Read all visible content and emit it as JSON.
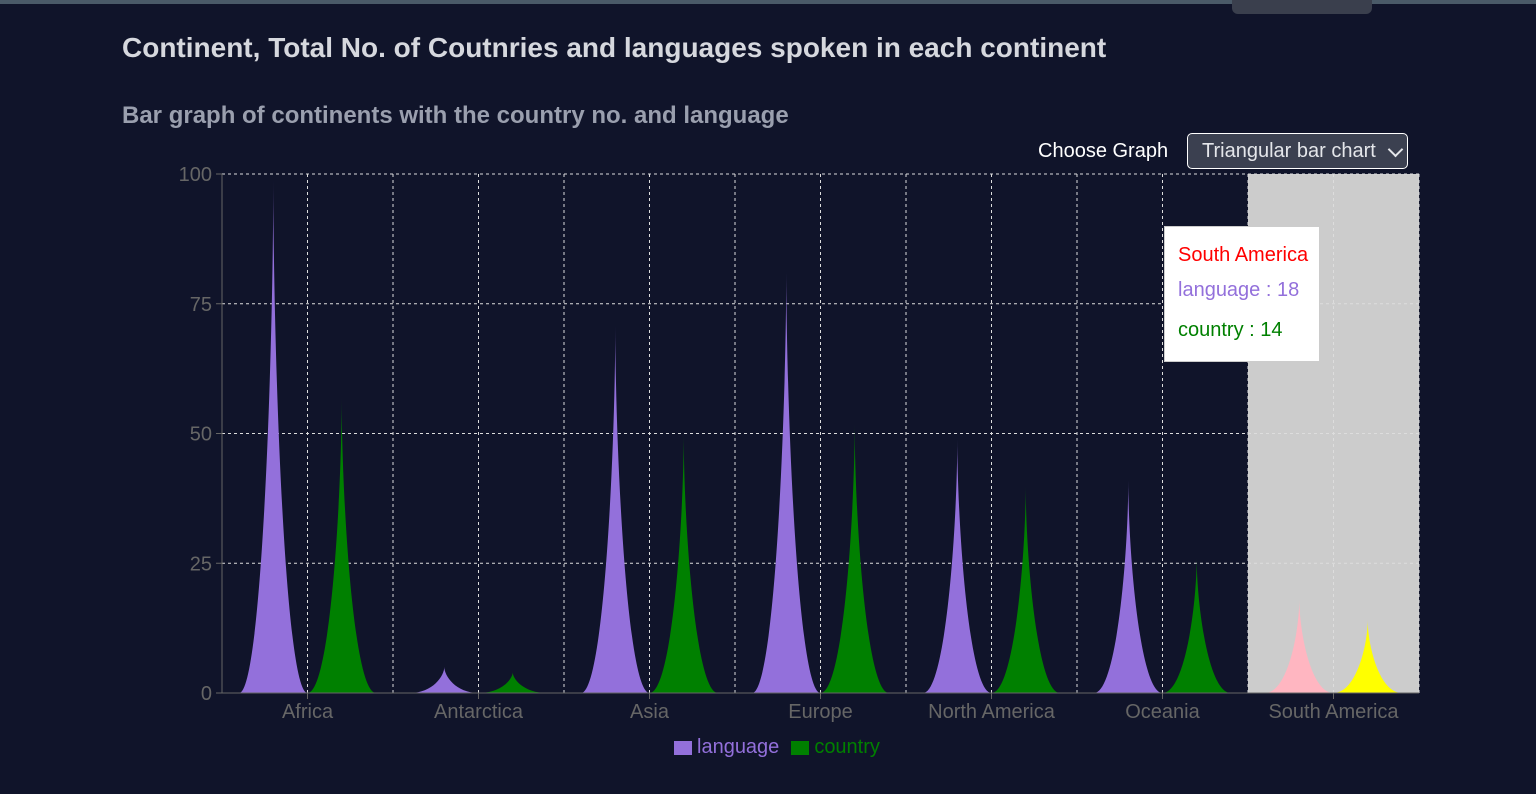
{
  "page": {
    "title": "Continent, Total No. of Coutnries and languages spoken in each continent",
    "subtitle": "Bar graph of continents with the country no. and language"
  },
  "controls": {
    "chooser_label": "Choose Graph",
    "chooser_value": "Triangular bar chart"
  },
  "tooltip": {
    "category": "South America",
    "rows": [
      {
        "name": "language",
        "value": "18",
        "color": "#9370db"
      },
      {
        "name": "country",
        "value": "14",
        "color": "#008000"
      }
    ],
    "title_color": "#ff0000"
  },
  "chart_data": {
    "type": "bar",
    "subtype": "triangular",
    "categories": [
      "Africa",
      "Antarctica",
      "Asia",
      "Europe",
      "North America",
      "Oceania",
      "South America"
    ],
    "series": [
      {
        "name": "language",
        "color": "#9370db",
        "values": [
          99,
          5,
          71,
          82,
          49,
          41,
          18
        ]
      },
      {
        "name": "country",
        "color": "#008000",
        "values": [
          57,
          4,
          50,
          52,
          40,
          26,
          14
        ]
      }
    ],
    "ylim": [
      0,
      100
    ],
    "yticks": [
      0,
      25,
      50,
      75,
      100
    ],
    "grid": true,
    "legend": "bottom-center",
    "active_category": "South America",
    "active_colors": {
      "language": "#ffb6c1",
      "country": "#ffff00"
    },
    "active_background": "#cccccc"
  }
}
